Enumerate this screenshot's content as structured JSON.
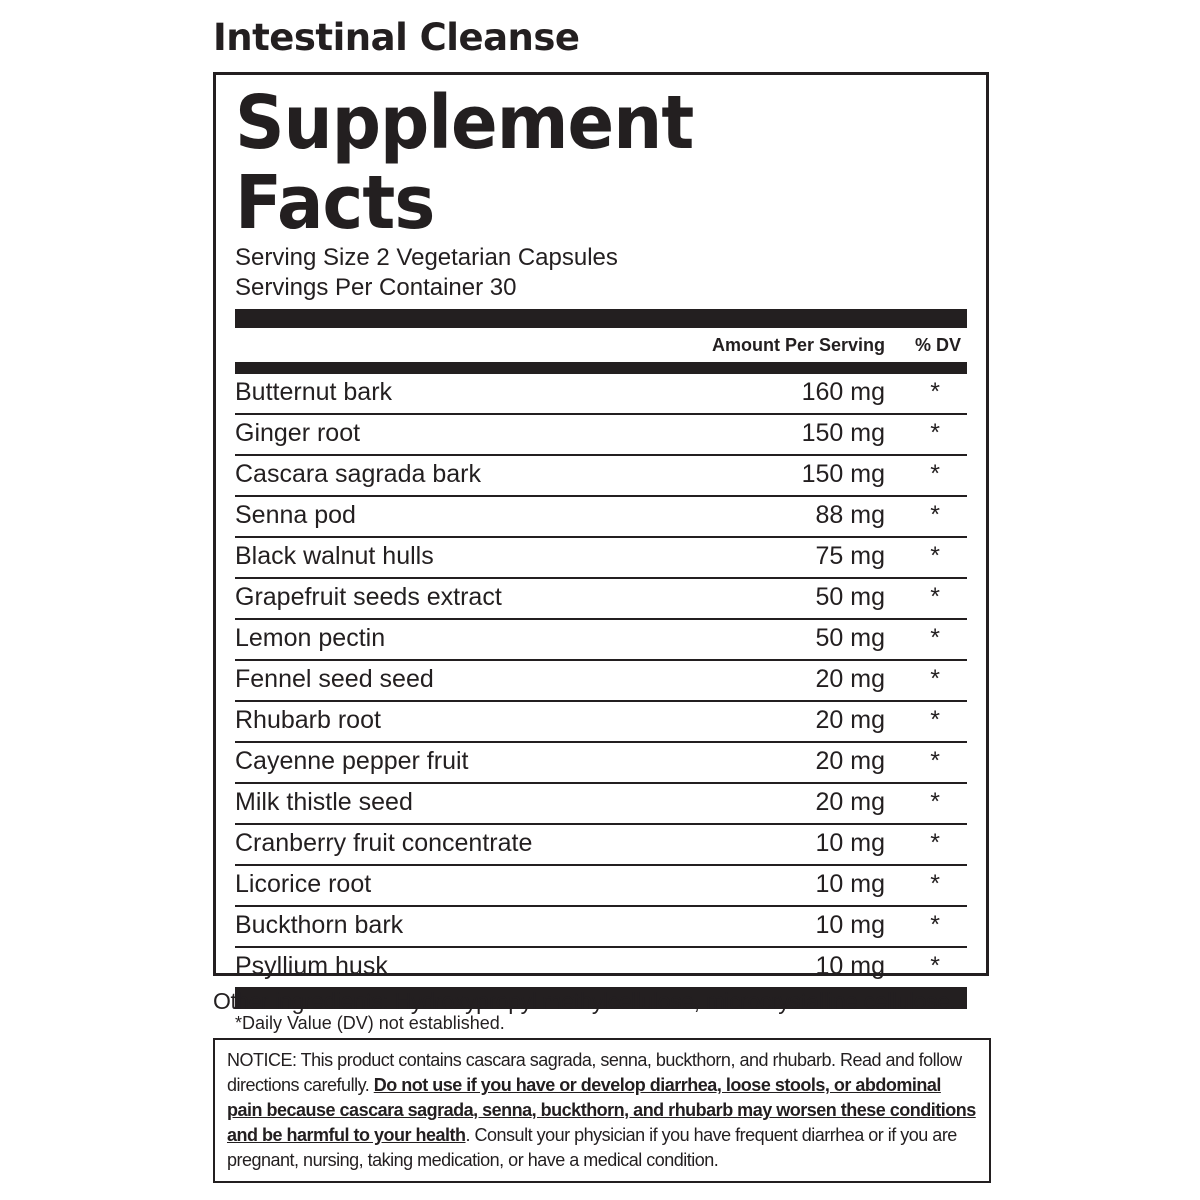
{
  "header": {
    "title": "Intestinal Cleanse"
  },
  "facts": {
    "heading": "Supplement Facts",
    "serving_size": "Serving Size 2 Vegetarian Capsules",
    "servings_per_container": "Servings Per Container 30",
    "columns": {
      "amount": "Amount Per Serving",
      "dv": "% DV"
    },
    "rows": [
      [
        "Butternut bark",
        "160 mg",
        "*"
      ],
      [
        "Ginger root",
        "150 mg",
        "*"
      ],
      [
        "Cascara sagrada bark",
        "150 mg",
        "*"
      ],
      [
        "Senna pod",
        "88 mg",
        "*"
      ],
      [
        "Black walnut hulls",
        "75 mg",
        "*"
      ],
      [
        "Grapefruit seeds extract",
        "50 mg",
        "*"
      ],
      [
        "Lemon pectin",
        "50 mg",
        "*"
      ],
      [
        "Fennel seed seed",
        "20 mg",
        "*"
      ],
      [
        "Rhubarb root",
        "20 mg",
        "*"
      ],
      [
        "Cayenne pepper fruit",
        "20 mg",
        "*"
      ],
      [
        "Milk thistle seed",
        "20 mg",
        "*"
      ],
      [
        "Cranberry fruit concentrate",
        "10 mg",
        "*"
      ],
      [
        "Licorice root",
        "10 mg",
        "*"
      ],
      [
        "Buckthorn bark",
        "10 mg",
        "*"
      ],
      [
        "Psyllium husk",
        "10 mg",
        "*"
      ]
    ],
    "footnote": "*Daily Value (DV) not established."
  },
  "other_ingredients": "Other ingredients: Hydroxypropyl methylcellulose, microcrystalline cellulose.",
  "notice": {
    "text_1": "NOTICE: This product contains cascara sagrada, senna, buckthorn, and rhubarb. Read and follow directions carefully. ",
    "warning": "Do not use if you have or develop diarrhea, loose stools, or abdominal pain because cascara sagrada, senna, buckthorn, and rhubarb may worsen these conditions and be harmful to your health",
    "text_2": ". Consult your physician if you have frequent diarrhea or if you are pregnant, nursing, taking medication, or have a medical condition."
  }
}
